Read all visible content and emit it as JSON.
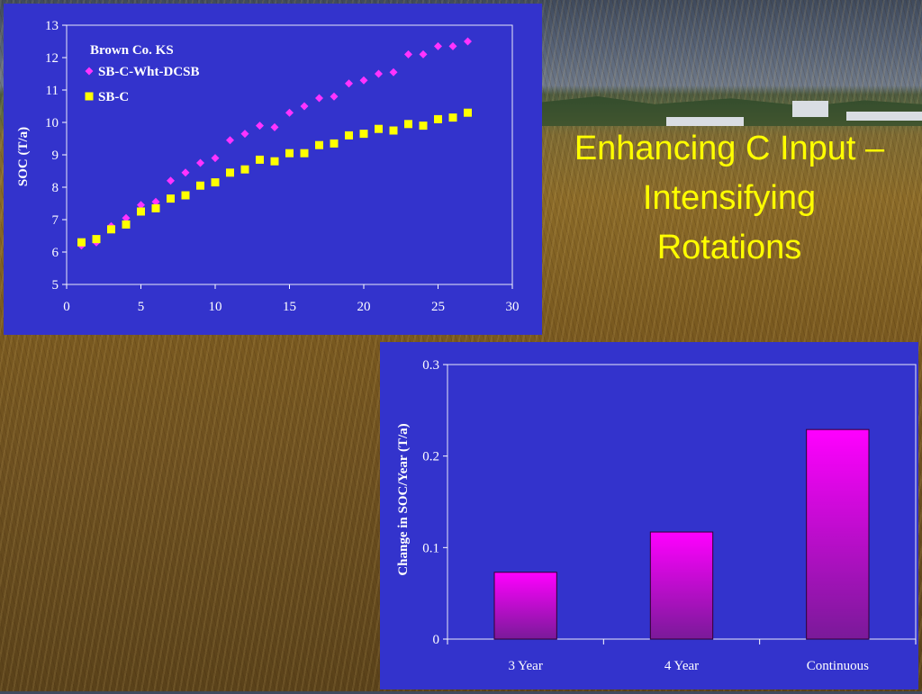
{
  "slide": {
    "title_lines": [
      "Enhancing C Input –",
      "Intensifying",
      "Rotations"
    ]
  },
  "chart_data": [
    {
      "type": "scatter",
      "annotation": "Brown Co. KS",
      "ylabel": "SOC (T/a)",
      "xlabel": "",
      "xlim": [
        0,
        30
      ],
      "ylim": [
        5,
        13
      ],
      "x_ticks": [
        0,
        5,
        10,
        15,
        20,
        25,
        30
      ],
      "y_ticks": [
        5,
        6,
        7,
        8,
        9,
        10,
        11,
        12,
        13
      ],
      "grid": false,
      "legend_position": "top-left",
      "series": [
        {
          "name": "SB-C-Wht-DCSB",
          "marker": "diamond",
          "color": "#ff33ff",
          "x": [
            1,
            2,
            3,
            4,
            5,
            6,
            7,
            8,
            9,
            10,
            11,
            12,
            13,
            14,
            15,
            16,
            17,
            18,
            19,
            20,
            21,
            22,
            23,
            24,
            25,
            26,
            27
          ],
          "y": [
            6.2,
            6.3,
            6.8,
            7.05,
            7.45,
            7.55,
            8.2,
            8.45,
            8.75,
            8.9,
            9.45,
            9.65,
            9.9,
            9.85,
            10.3,
            10.5,
            10.75,
            10.8,
            11.2,
            11.3,
            11.5,
            11.55,
            12.1,
            12.1,
            12.35,
            12.35,
            12.5
          ]
        },
        {
          "name": "SB-C",
          "marker": "square",
          "color": "#ffff00",
          "x": [
            1,
            2,
            3,
            4,
            5,
            6,
            7,
            8,
            9,
            10,
            11,
            12,
            13,
            14,
            15,
            16,
            17,
            18,
            19,
            20,
            21,
            22,
            23,
            24,
            25,
            26,
            27
          ],
          "y": [
            6.3,
            6.4,
            6.7,
            6.85,
            7.25,
            7.35,
            7.65,
            7.75,
            8.05,
            8.15,
            8.45,
            8.55,
            8.85,
            8.8,
            9.05,
            9.05,
            9.3,
            9.35,
            9.6,
            9.65,
            9.8,
            9.75,
            9.95,
            9.9,
            10.1,
            10.15,
            10.3
          ]
        }
      ]
    },
    {
      "type": "bar",
      "categories": [
        "3 Year",
        "4 Year",
        "Continuous"
      ],
      "values": [
        0.073,
        0.117,
        0.229
      ],
      "ylabel": "Change in SOC/Year (T/a)",
      "xlabel": "",
      "ylim": [
        0,
        0.3
      ],
      "y_ticks": [
        "0",
        "0.1",
        "0.2",
        "0.3"
      ],
      "grid": false,
      "bar_color_top": "#ff00ff",
      "bar_color_bottom": "#7a1a99"
    }
  ]
}
